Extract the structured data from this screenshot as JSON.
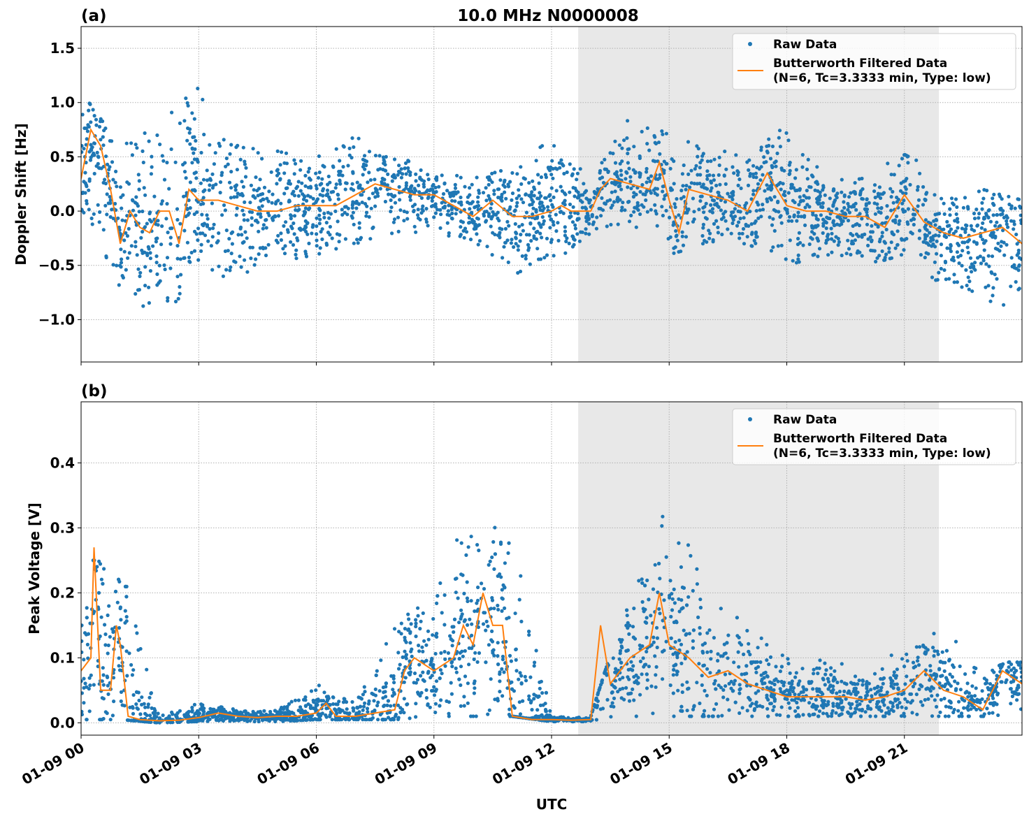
{
  "chart_data": [
    {
      "type": "scatter+line",
      "panel_label": "(a)",
      "title": "10.0 MHz N0000008",
      "xlabel": "",
      "ylabel": "Doppler Shift [Hz]",
      "xlim_hours": [
        0,
        24
      ],
      "ylim": [
        -1.39,
        1.7
      ],
      "yticks": [
        -1.0,
        -0.5,
        0.0,
        0.5,
        1.0,
        1.5
      ],
      "ytick_labels": [
        "−1.0",
        "−0.5",
        "0.0",
        "0.5",
        "1.0",
        "1.5"
      ],
      "xticks_hours": [
        0,
        3,
        6,
        9,
        12,
        15,
        18,
        21
      ],
      "grid": true,
      "shaded_region_hours": [
        12.68,
        21.88
      ],
      "shade_color": "#e8e8e8",
      "legend_position": "top-right",
      "series": [
        {
          "name": "Raw Data",
          "kind": "scatter",
          "color": "#1f77b4",
          "envelope_hours": [
            0,
            1,
            2,
            3,
            4,
            5,
            6,
            7,
            8,
            9,
            10,
            11,
            12,
            13,
            14,
            15,
            16,
            17,
            18,
            19,
            20,
            21,
            22,
            23,
            24
          ],
          "envelope_low": [
            -0.1,
            -0.7,
            -1.0,
            -0.6,
            -0.6,
            -0.5,
            -0.4,
            -0.3,
            -0.2,
            -0.2,
            -0.3,
            -0.6,
            -0.5,
            -0.2,
            -0.1,
            -0.4,
            -0.3,
            -0.3,
            -0.5,
            -0.4,
            -0.5,
            -0.4,
            -0.7,
            -0.8,
            -1.0
          ],
          "envelope_high": [
            1.1,
            0.6,
            0.8,
            1.2,
            0.6,
            0.6,
            0.5,
            0.7,
            0.5,
            0.4,
            0.3,
            0.4,
            0.7,
            0.3,
            0.9,
            0.7,
            0.6,
            0.5,
            0.8,
            0.3,
            0.3,
            0.7,
            0.1,
            0.2,
            0.1
          ]
        },
        {
          "name": "Butterworth Filtered Data",
          "name_line2": "(N=6, Tc=3.3333 min, Type: low)",
          "kind": "line",
          "color": "#ff7f0e",
          "x_hours": [
            0,
            0.25,
            0.5,
            0.75,
            1.0,
            1.25,
            1.5,
            1.75,
            2.0,
            2.25,
            2.5,
            2.75,
            3.0,
            3.5,
            4,
            4.5,
            5,
            5.5,
            6,
            6.5,
            7,
            7.5,
            8,
            8.5,
            9,
            9.5,
            10,
            10.5,
            11,
            11.5,
            12,
            12.25,
            12.5,
            13,
            13.25,
            13.5,
            14,
            14.5,
            14.75,
            15,
            15.25,
            15.5,
            16,
            16.5,
            17,
            17.5,
            18,
            18.5,
            19,
            19.5,
            20,
            20.5,
            21,
            21.5,
            22,
            22.5,
            23,
            23.5,
            24
          ],
          "y": [
            0.3,
            0.75,
            0.6,
            0.2,
            -0.3,
            0.0,
            -0.15,
            -0.2,
            0.0,
            0.0,
            -0.3,
            0.2,
            0.1,
            0.1,
            0.05,
            0.0,
            0.0,
            0.05,
            0.05,
            0.05,
            0.15,
            0.25,
            0.2,
            0.15,
            0.15,
            0.05,
            -0.05,
            0.1,
            -0.05,
            -0.05,
            0.0,
            0.05,
            0.0,
            0.0,
            0.2,
            0.3,
            0.25,
            0.2,
            0.45,
            0.1,
            -0.2,
            0.2,
            0.15,
            0.1,
            0.0,
            0.35,
            0.05,
            0.0,
            0.0,
            -0.05,
            -0.05,
            -0.15,
            0.15,
            -0.1,
            -0.2,
            -0.25,
            -0.2,
            -0.15,
            -0.3
          ]
        }
      ]
    },
    {
      "type": "scatter+line",
      "panel_label": "(b)",
      "title": "",
      "xlabel": "UTC",
      "ylabel": "Peak Voltage [V]",
      "xlim_hours": [
        0,
        24
      ],
      "ylim": [
        -0.019,
        0.494
      ],
      "yticks": [
        0.0,
        0.1,
        0.2,
        0.3,
        0.4
      ],
      "ytick_labels": [
        "0.0",
        "0.1",
        "0.2",
        "0.3",
        "0.4"
      ],
      "xticks_hours": [
        0,
        3,
        6,
        9,
        12,
        15,
        18,
        21
      ],
      "xtick_labels": [
        "01-09 00",
        "01-09 03",
        "01-09 06",
        "01-09 09",
        "01-09 12",
        "01-09 15",
        "01-09 18",
        "01-09 21"
      ],
      "grid": true,
      "shaded_region_hours": [
        12.68,
        21.88
      ],
      "shade_color": "#e8e8e8",
      "legend_position": "top-right",
      "series": [
        {
          "name": "Raw Data",
          "kind": "scatter",
          "color": "#1f77b4",
          "envelope_hours": [
            0,
            1,
            2,
            3,
            4,
            5,
            6,
            7,
            8,
            9,
            10,
            11,
            12,
            13,
            14,
            15,
            16,
            17,
            18,
            19,
            20,
            21,
            22,
            23,
            24
          ],
          "envelope_low": [
            0.005,
            0.005,
            0.0,
            0.002,
            0.002,
            0.002,
            0.005,
            0.005,
            0.005,
            0.01,
            0.01,
            0.01,
            0.002,
            0.002,
            0.01,
            0.01,
            0.01,
            0.01,
            0.01,
            0.01,
            0.01,
            0.01,
            0.01,
            0.01,
            0.01
          ],
          "envelope_high": [
            0.25,
            0.25,
            0.01,
            0.03,
            0.02,
            0.02,
            0.06,
            0.03,
            0.15,
            0.2,
            0.35,
            0.3,
            0.01,
            0.01,
            0.2,
            0.35,
            0.2,
            0.15,
            0.1,
            0.1,
            0.08,
            0.12,
            0.15,
            0.08,
            0.1
          ]
        },
        {
          "name": "Butterworth Filtered Data",
          "name_line2": "(N=6, Tc=3.3333 min, Type: low)",
          "kind": "line",
          "color": "#ff7f0e",
          "x_hours": [
            0,
            0.25,
            0.33,
            0.5,
            0.75,
            0.9,
            1.0,
            1.2,
            1.5,
            2,
            2.5,
            3,
            3.5,
            4,
            4.5,
            5,
            5.5,
            6,
            6.25,
            6.5,
            7,
            7.5,
            8,
            8.25,
            8.5,
            9,
            9.5,
            9.75,
            10,
            10.25,
            10.5,
            10.75,
            11,
            11.5,
            12,
            12.5,
            13,
            13.25,
            13.5,
            14,
            14.5,
            14.75,
            15,
            15.5,
            16,
            16.5,
            17,
            17.5,
            18,
            18.5,
            19,
            19.5,
            20,
            20.5,
            21,
            21.5,
            22,
            22.5,
            23,
            23.5,
            24
          ],
          "y": [
            0.08,
            0.1,
            0.27,
            0.05,
            0.05,
            0.15,
            0.12,
            0.01,
            0.005,
            0.003,
            0.004,
            0.008,
            0.015,
            0.01,
            0.008,
            0.01,
            0.01,
            0.015,
            0.03,
            0.01,
            0.01,
            0.015,
            0.02,
            0.08,
            0.1,
            0.08,
            0.1,
            0.15,
            0.12,
            0.2,
            0.15,
            0.15,
            0.01,
            0.005,
            0.005,
            0.004,
            0.005,
            0.15,
            0.06,
            0.1,
            0.12,
            0.2,
            0.12,
            0.1,
            0.07,
            0.08,
            0.06,
            0.05,
            0.04,
            0.04,
            0.04,
            0.04,
            0.035,
            0.04,
            0.05,
            0.08,
            0.05,
            0.04,
            0.02,
            0.08,
            0.06
          ]
        }
      ]
    }
  ]
}
